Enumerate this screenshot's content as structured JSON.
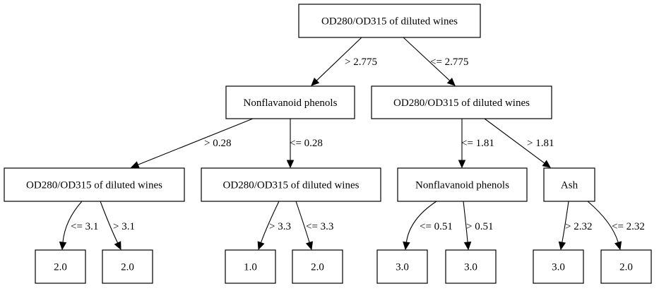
{
  "tree": {
    "nodes": [
      {
        "id": "root",
        "label": "OD280/OD315 of diluted wines"
      },
      {
        "id": "n_l",
        "label": "Nonflavanoid phenols"
      },
      {
        "id": "n_r",
        "label": "OD280/OD315 of diluted wines"
      },
      {
        "id": "n_ll",
        "label": "OD280/OD315 of diluted wines"
      },
      {
        "id": "n_lr",
        "label": "OD280/OD315 of diluted wines"
      },
      {
        "id": "n_rl",
        "label": "Nonflavanoid phenols"
      },
      {
        "id": "n_rr",
        "label": "Ash"
      },
      {
        "id": "leaf1",
        "label": "2.0"
      },
      {
        "id": "leaf2",
        "label": "2.0"
      },
      {
        "id": "leaf3",
        "label": "1.0"
      },
      {
        "id": "leaf4",
        "label": "2.0"
      },
      {
        "id": "leaf5",
        "label": "3.0"
      },
      {
        "id": "leaf6",
        "label": "3.0"
      },
      {
        "id": "leaf7",
        "label": "3.0"
      },
      {
        "id": "leaf8",
        "label": "2.0"
      }
    ],
    "edges": [
      {
        "from": "root",
        "to": "n_l",
        "label": "> 2.775"
      },
      {
        "from": "root",
        "to": "n_r",
        "label": "<= 2.775"
      },
      {
        "from": "n_l",
        "to": "n_ll",
        "label": "> 0.28"
      },
      {
        "from": "n_l",
        "to": "n_lr",
        "label": "<= 0.28"
      },
      {
        "from": "n_r",
        "to": "n_rl",
        "label": "<= 1.81"
      },
      {
        "from": "n_r",
        "to": "n_rr",
        "label": "> 1.81"
      },
      {
        "from": "n_ll",
        "to": "leaf1",
        "label": "<= 3.1"
      },
      {
        "from": "n_ll",
        "to": "leaf2",
        "label": "> 3.1"
      },
      {
        "from": "n_lr",
        "to": "leaf3",
        "label": "> 3.3"
      },
      {
        "from": "n_lr",
        "to": "leaf4",
        "label": "<= 3.3"
      },
      {
        "from": "n_rl",
        "to": "leaf5",
        "label": "<= 0.51"
      },
      {
        "from": "n_rl",
        "to": "leaf6",
        "label": "> 0.51"
      },
      {
        "from": "n_rr",
        "to": "leaf7",
        "label": "> 2.32"
      },
      {
        "from": "n_rr",
        "to": "leaf8",
        "label": "<= 2.32"
      }
    ]
  }
}
